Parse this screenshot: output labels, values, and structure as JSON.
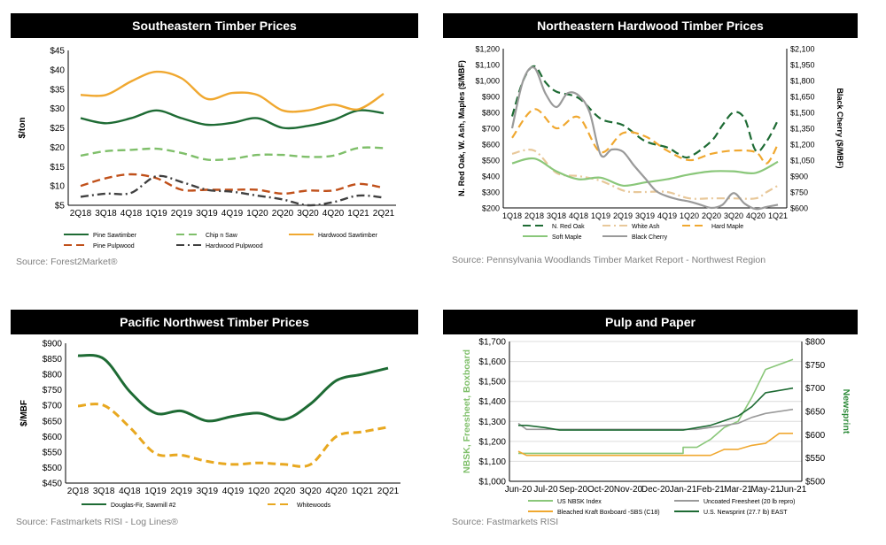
{
  "panels": [
    {
      "title": "Southeastern Timber Prices",
      "source": "Source: Forest2Market®"
    },
    {
      "title": "Northeastern Hardwood Timber Prices",
      "source": "Source: Pennsylvania Woodlands Timber Market Report - Northwest Region"
    },
    {
      "title": "Pacific Northwest Timber Prices",
      "source": "Source: Fastmarkets RISI - Log Lines®"
    },
    {
      "title": "Pulp and Paper",
      "source": "Source: Fastmarkets RISI"
    }
  ],
  "chart_data": [
    {
      "type": "line",
      "title": "Southeastern Timber Prices",
      "ylabel": "$/ton",
      "ylim": [
        5,
        45
      ],
      "yticks": [
        "$5",
        "$10",
        "$15",
        "$20",
        "$25",
        "$30",
        "$35",
        "$40",
        "$45"
      ],
      "grid": false,
      "legend": "bottom",
      "categories": [
        "2Q18",
        "3Q18",
        "4Q18",
        "1Q19",
        "2Q19",
        "3Q19",
        "4Q19",
        "1Q20",
        "2Q20",
        "3Q20",
        "4Q20",
        "1Q21",
        "2Q21"
      ],
      "series": [
        {
          "name": "Pine Sawtimber",
          "color": "#1e6b34",
          "dash": "solid",
          "values": [
            27.5,
            26.2,
            27.5,
            29.5,
            27.5,
            25.8,
            26.3,
            27.5,
            25.0,
            25.5,
            27.0,
            29.5,
            28.8
          ]
        },
        {
          "name": "Chip n Saw",
          "color": "#7fbf6a",
          "dash": "dashed",
          "values": [
            17.8,
            19.0,
            19.3,
            19.6,
            18.5,
            16.8,
            17.0,
            18.0,
            18.0,
            17.5,
            17.8,
            19.8,
            19.8
          ]
        },
        {
          "name": "Hardwood Sawtimber",
          "color": "#f0a830",
          "dash": "solid",
          "values": [
            33.5,
            33.5,
            37.0,
            39.5,
            37.8,
            32.5,
            34.0,
            33.5,
            29.5,
            29.5,
            31.0,
            29.8,
            33.8
          ]
        },
        {
          "name": "Pine Pulpwood",
          "color": "#c0501a",
          "dash": "dashed",
          "values": [
            10.0,
            12.0,
            13.0,
            12.0,
            9.0,
            9.0,
            9.0,
            9.0,
            8.0,
            8.8,
            8.8,
            10.5,
            9.5
          ]
        },
        {
          "name": "Hardwood Pulpwood",
          "color": "#404040",
          "dash": "dashdot",
          "values": [
            7.2,
            8.0,
            8.2,
            12.5,
            11.0,
            9.0,
            8.5,
            7.5,
            6.5,
            5.0,
            5.8,
            7.5,
            7.0
          ]
        }
      ]
    },
    {
      "type": "line",
      "title": "Northeastern Hardwood Timber Prices",
      "ylabel": "N. Red Oak, W. Ash, Maples ($/MBF)",
      "y2label": "Black Cherry ($/MBF)",
      "ylim": [
        200,
        1200
      ],
      "y2lim": [
        600,
        2100
      ],
      "yticks": [
        "$200",
        "$300",
        "$400",
        "$500",
        "$600",
        "$700",
        "$800",
        "$900",
        "$1,000",
        "$1,100",
        "$1,200"
      ],
      "y2ticks": [
        "$600",
        "$750",
        "$900",
        "$1,050",
        "$1,200",
        "$1,350",
        "$1,500",
        "$1,650",
        "$1,800",
        "$1,950",
        "$2,100"
      ],
      "grid": false,
      "legend": "bottom",
      "categories": [
        "1Q18",
        "2Q18",
        "3Q18",
        "4Q18",
        "1Q19",
        "2Q19",
        "3Q19",
        "4Q19",
        "1Q20",
        "2Q20",
        "3Q20",
        "4Q20",
        "1Q21"
      ],
      "series": [
        {
          "name": "N. Red Oak",
          "color": "#1e6b34",
          "dash": "dashed",
          "axis": "left",
          "x": [
            0,
            0.5,
            1,
            1.5,
            2,
            3,
            4,
            5,
            6,
            7,
            7.5,
            8,
            9,
            9.5,
            10,
            10.5,
            11,
            11.5,
            12
          ],
          "values": [
            775,
            1000,
            1090,
            990,
            930,
            890,
            760,
            720,
            620,
            580,
            540,
            520,
            620,
            720,
            800,
            760,
            560,
            620,
            750
          ]
        },
        {
          "name": "White Ash",
          "color": "#e8c89a",
          "dash": "dashdot",
          "axis": "left",
          "x": [
            0,
            1,
            2,
            3,
            4,
            5,
            5.5,
            6,
            7,
            8,
            9,
            10,
            11,
            11.5,
            12
          ],
          "values": [
            540,
            560,
            420,
            400,
            370,
            310,
            300,
            300,
            300,
            260,
            260,
            260,
            260,
            300,
            340
          ]
        },
        {
          "name": "Hard Maple",
          "color": "#f0a830",
          "dash": "dashed",
          "axis": "left",
          "x": [
            0,
            1,
            2,
            3,
            4,
            5,
            6,
            7,
            8,
            9,
            10,
            11,
            11.5,
            12
          ],
          "values": [
            640,
            820,
            700,
            770,
            550,
            670,
            650,
            560,
            500,
            540,
            560,
            550,
            480,
            600
          ]
        },
        {
          "name": "Soft Maple",
          "color": "#8ac77a",
          "dash": "solid",
          "axis": "left",
          "x": [
            0,
            1,
            2,
            3,
            4,
            5,
            6,
            7,
            8,
            9,
            10,
            11,
            12
          ],
          "values": [
            480,
            510,
            430,
            380,
            390,
            340,
            360,
            380,
            410,
            430,
            430,
            420,
            490
          ]
        },
        {
          "name": "Black Cherry",
          "color": "#9a9a9a",
          "dash": "solid",
          "axis": "right",
          "x": [
            0,
            0.5,
            1,
            1.5,
            2,
            2.5,
            3,
            3.5,
            4,
            4.5,
            5,
            5.5,
            6,
            6.5,
            7,
            7.5,
            8,
            8.5,
            9,
            9.5,
            10,
            10.5,
            11,
            11.5,
            12
          ],
          "values": [
            1350,
            1800,
            1920,
            1680,
            1550,
            1680,
            1660,
            1500,
            1100,
            1150,
            1130,
            1000,
            880,
            760,
            710,
            680,
            660,
            630,
            600,
            630,
            740,
            640,
            590,
            610,
            630
          ]
        }
      ]
    },
    {
      "type": "line",
      "title": "Pacific Northwest Timber Prices",
      "ylabel": "$/MBF",
      "ylim": [
        450,
        900
      ],
      "yticks": [
        "$450",
        "$500",
        "$550",
        "$600",
        "$650",
        "$700",
        "$750",
        "$800",
        "$850",
        "$900"
      ],
      "grid": false,
      "legend": "bottom",
      "categories": [
        "2Q18",
        "3Q18",
        "4Q18",
        "1Q19",
        "2Q19",
        "3Q19",
        "4Q19",
        "1Q20",
        "2Q20",
        "3Q20",
        "4Q20",
        "1Q21",
        "2Q21"
      ],
      "series": [
        {
          "name": "Douglas-Fir, Sawmill #2",
          "color": "#1e6b34",
          "dash": "solid",
          "values": [
            860,
            850,
            745,
            675,
            682,
            650,
            665,
            675,
            655,
            705,
            780,
            800,
            820
          ]
        },
        {
          "name": "Whitewoods",
          "color": "#e8a820",
          "dash": "dashed",
          "values": [
            698,
            700,
            630,
            545,
            540,
            520,
            510,
            515,
            510,
            510,
            600,
            615,
            630
          ]
        }
      ]
    },
    {
      "type": "line",
      "title": "Pulp and Paper",
      "ylabel": "NBSK, Freesheet, Boxboard",
      "y2label": "Newsprint",
      "ylim": [
        1000,
        1700
      ],
      "y2lim": [
        500,
        800
      ],
      "yticks": [
        "$1,000",
        "$1,100",
        "$1,200",
        "$1,300",
        "$1,400",
        "$1,500",
        "$1,600",
        "$1,700"
      ],
      "y2ticks": [
        "$500",
        "$550",
        "$600",
        "$650",
        "$700",
        "$750",
        "$800"
      ],
      "grid": true,
      "legend": "bottom",
      "categories": [
        "Jun-20",
        "Jul-20",
        "Sep-20",
        "Oct-20",
        "Nov-20",
        "Dec-20",
        "Jan-21",
        "Feb-21",
        "Mar-21",
        "May-21",
        "Jun-21"
      ],
      "series": [
        {
          "name": "US NBSK Index",
          "color": "#8ac77a",
          "dash": "solid",
          "axis": "left",
          "x": [
            0,
            0.5,
            1,
            6,
            6,
            6.5,
            7,
            7.5,
            8,
            8.5,
            9,
            10
          ],
          "values": [
            1140,
            1140,
            1140,
            1140,
            1170,
            1170,
            1210,
            1270,
            1300,
            1420,
            1560,
            1610
          ]
        },
        {
          "name": "Uncoated Freesheet (20 lb repro)",
          "color": "#9a9a9a",
          "dash": "solid",
          "axis": "left",
          "x": [
            0,
            0.3,
            1,
            6,
            6.5,
            7,
            7.5,
            8,
            8.5,
            9,
            10
          ],
          "values": [
            1290,
            1260,
            1260,
            1260,
            1260,
            1270,
            1280,
            1290,
            1320,
            1340,
            1360
          ]
        },
        {
          "name": "Bleached Kraft Boxboard -SBS (C18)",
          "color": "#f0a830",
          "dash": "solid",
          "axis": "left",
          "x": [
            0,
            0.3,
            1,
            7,
            7.5,
            8,
            8.5,
            9,
            9.5,
            10
          ],
          "values": [
            1150,
            1130,
            1130,
            1130,
            1160,
            1160,
            1180,
            1190,
            1240,
            1240
          ]
        },
        {
          "name": "U.S. Newsprint (27.7 lb) EAST",
          "color": "#1e6b34",
          "dash": "solid",
          "axis": "right",
          "x": [
            0,
            0.3,
            1,
            1.5,
            6,
            6.5,
            7,
            7.5,
            8,
            8.5,
            9,
            10
          ],
          "values": [
            620,
            620,
            615,
            610,
            610,
            615,
            620,
            630,
            640,
            660,
            690,
            700
          ]
        }
      ]
    }
  ]
}
